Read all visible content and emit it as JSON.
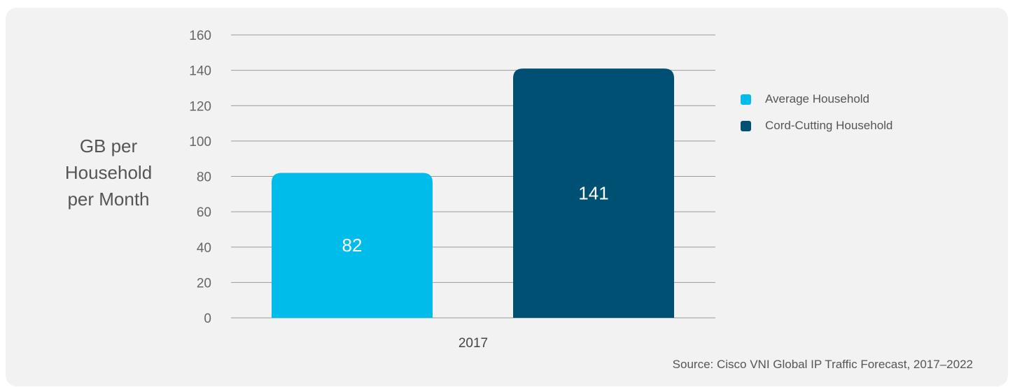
{
  "colors": {
    "average": "#00bceb",
    "cord_cutting": "#005073",
    "grid": "#9a9a9a",
    "panel": "#f2f2f2"
  },
  "chart_data": {
    "type": "bar",
    "categories": [
      "2017"
    ],
    "series": [
      {
        "name": "Average Household",
        "values": [
          82
        ]
      },
      {
        "name": "Cord-Cutting Household",
        "values": [
          141
        ]
      }
    ],
    "ylabel": "GB per\nHousehold\nper Month",
    "ylim": [
      0,
      160
    ],
    "yticks": [
      0,
      20,
      40,
      60,
      80,
      100,
      120,
      140,
      160
    ],
    "grid": true,
    "legend_position": "right"
  },
  "source": "Source: Cisco VNI Global IP Traffic Forecast, 2017–2022"
}
